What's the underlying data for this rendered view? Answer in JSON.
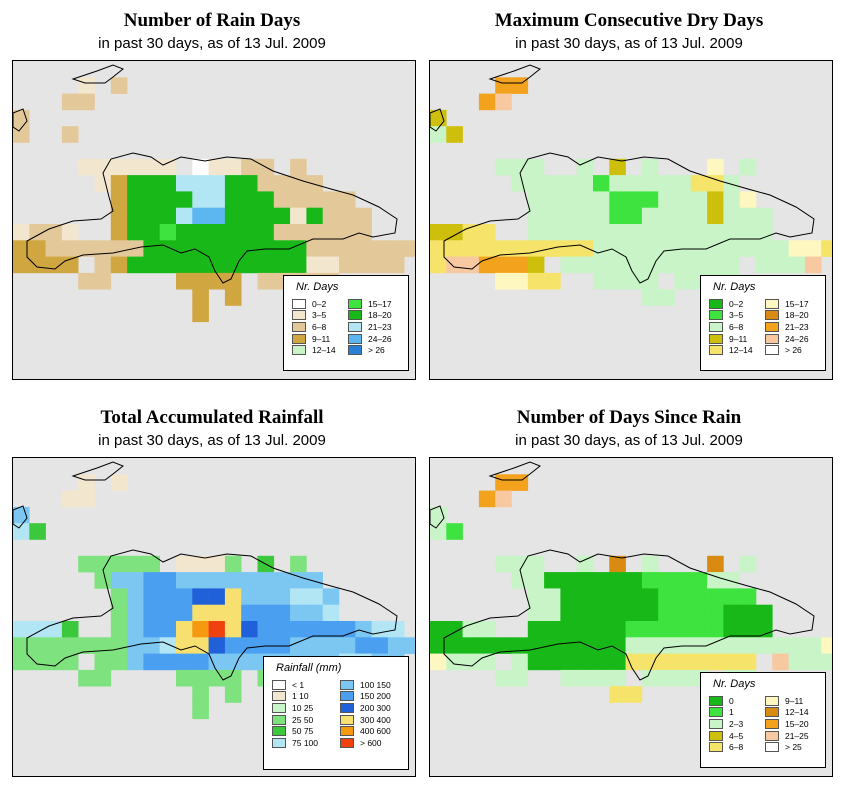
{
  "panels": [
    {
      "key": "rain_days",
      "title": "Number of Rain Days",
      "subtitle": "in past 30 days, as of  13 Jul. 2009",
      "legend": {
        "title": "Nr. Days",
        "items": [
          {
            "label": "0–2",
            "color": "#ffffff"
          },
          {
            "label": "3–5",
            "color": "#f3e6cf"
          },
          {
            "label": "6–8",
            "color": "#e3c99a"
          },
          {
            "label": "9–11",
            "color": "#cfa640"
          },
          {
            "label": "12–14",
            "color": "#c8f4c8"
          },
          {
            "label": "15–17",
            "color": "#3fe33f"
          },
          {
            "label": "18–20",
            "color": "#17b817"
          },
          {
            "label": "21–23",
            "color": "#b3e6f5"
          },
          {
            "label": "24–26",
            "color": "#5cb6ef"
          },
          {
            "label": "> 26",
            "color": "#2a7fd6"
          }
        ]
      }
    },
    {
      "key": "dry_days",
      "title": "Maximum Consecutive Dry Days",
      "subtitle": "in past 30 days, as of  13 Jul. 2009",
      "legend": {
        "title": "Nr. Days",
        "items": [
          {
            "label": "0–2",
            "color": "#17b817"
          },
          {
            "label": "3–5",
            "color": "#3fe33f"
          },
          {
            "label": "6–8",
            "color": "#c8f4c8"
          },
          {
            "label": "9–11",
            "color": "#cdbf0c"
          },
          {
            "label": "12–14",
            "color": "#f6e46a"
          },
          {
            "label": "15–17",
            "color": "#fff7c0"
          },
          {
            "label": "18–20",
            "color": "#d88b10"
          },
          {
            "label": "21–23",
            "color": "#f2a21c"
          },
          {
            "label": "24–26",
            "color": "#f8c8a0"
          },
          {
            "label": "> 26",
            "color": "#ffffff"
          }
        ]
      }
    },
    {
      "key": "rainfall",
      "title": "Total Accumulated Rainfall",
      "subtitle": "in past 30 days, as of  13 Jul. 2009",
      "legend": {
        "title": "Rainfall (mm)",
        "items": [
          {
            "label": "< 1",
            "color": "#ffffff"
          },
          {
            "label": "1   10",
            "color": "#f3e6cf"
          },
          {
            "label": "10   25",
            "color": "#c8f4c8"
          },
          {
            "label": "25   50",
            "color": "#7ee27e"
          },
          {
            "label": "50   75",
            "color": "#3cc83c"
          },
          {
            "label": "75  100",
            "color": "#b3e6f5"
          },
          {
            "label": "100  150",
            "color": "#7cc6f2"
          },
          {
            "label": "150  200",
            "color": "#4a9ff0"
          },
          {
            "label": "200  300",
            "color": "#2060d8"
          },
          {
            "label": "300  400",
            "color": "#f7e070"
          },
          {
            "label": "400  600",
            "color": "#f59a10"
          },
          {
            "label": "> 600",
            "color": "#f04010"
          }
        ]
      }
    },
    {
      "key": "since_rain",
      "title": "Number of Days Since Rain",
      "subtitle": "in past 30 days, as of  13 Jul. 2009",
      "legend": {
        "title": "Nr. Days",
        "items": [
          {
            "label": "0",
            "color": "#17b817"
          },
          {
            "label": "1",
            "color": "#3fe33f"
          },
          {
            "label": "2–3",
            "color": "#c8f4c8"
          },
          {
            "label": "4–5",
            "color": "#cdbf0c"
          },
          {
            "label": "6–8",
            "color": "#f6e46a"
          },
          {
            "label": "9–11",
            "color": "#fff7c0"
          },
          {
            "label": "12–14",
            "color": "#d88b10"
          },
          {
            "label": "15–20",
            "color": "#f2a21c"
          },
          {
            "label": "21–25",
            "color": "#f8c8a0"
          },
          {
            "label": "> 25",
            "color": "#ffffff"
          }
        ]
      }
    }
  ],
  "grids": {
    "rain_days": [
      "...........................",
      "....1.2.....................",
      "...22.......................",
      "2...........................",
      "2..2..........................",
      "..........................",
      "....111111.01122.2.........",
      ".....13666777662222.........",
      "......366667766622222.......",
      "......3666788666616222......",
      "1221..3665666666222222......",
      "3322222266666666662222222...",
      "3333.2366666666666112222....",
      "....22....3333.22222.........",
      "...........3.3..............",
      "...........3................",
      "..........................."
    ],
    "dry_days": [
      "............................",
      "....77........................",
      "...78.........................",
      "3...........................",
      "23..........................",
      "..........................",
      "....222..2.3.2...5.2.........",
      ".....22222122222442.........",
      "......22222111222325.........",
      "......222221122223222........",
      "3344..222222222222222........",
      "4444444444222222222222554...",
      "4887773.22222222222.2228....",
      "....5544..2222.2222.........",
      ".............22..............",
      "............................",
      "..........................."
    ],
    "rainfall": [
      "...........................",
      "....1.1.....................",
      "...11.......................",
      "6...........................",
      "54..........................",
      "..........................",
      "....33333.1113.4.3.........",
      ".....36677666666666.........",
      "......36777889666556........",
      "......36777999777665........",
      "5554..36779AB98777777655....",
      "3333333665998777766667766...",
      "3333.3367777666666665566....",
      "....33....3333.33333.........",
      "...........3.3..............",
      "...........3................",
      "..........................."
    ],
    "since_rain": [
      "............................",
      "....77........................",
      "...78.........................",
      "2...........................",
      "21..........................",
      "..........................",
      "....222..2.6.2...6.2.........",
      ".....22000000111122.........",
      "......22000000111111.........",
      "......220000001111000........",
      "0022..000000111111000........",
      "00000000000022222222222252...",
      "5222.200000044444444.8222....",
      "....22..2222.2222.22.........",
      "...........44..............",
      "............................",
      "..........................."
    ]
  }
}
